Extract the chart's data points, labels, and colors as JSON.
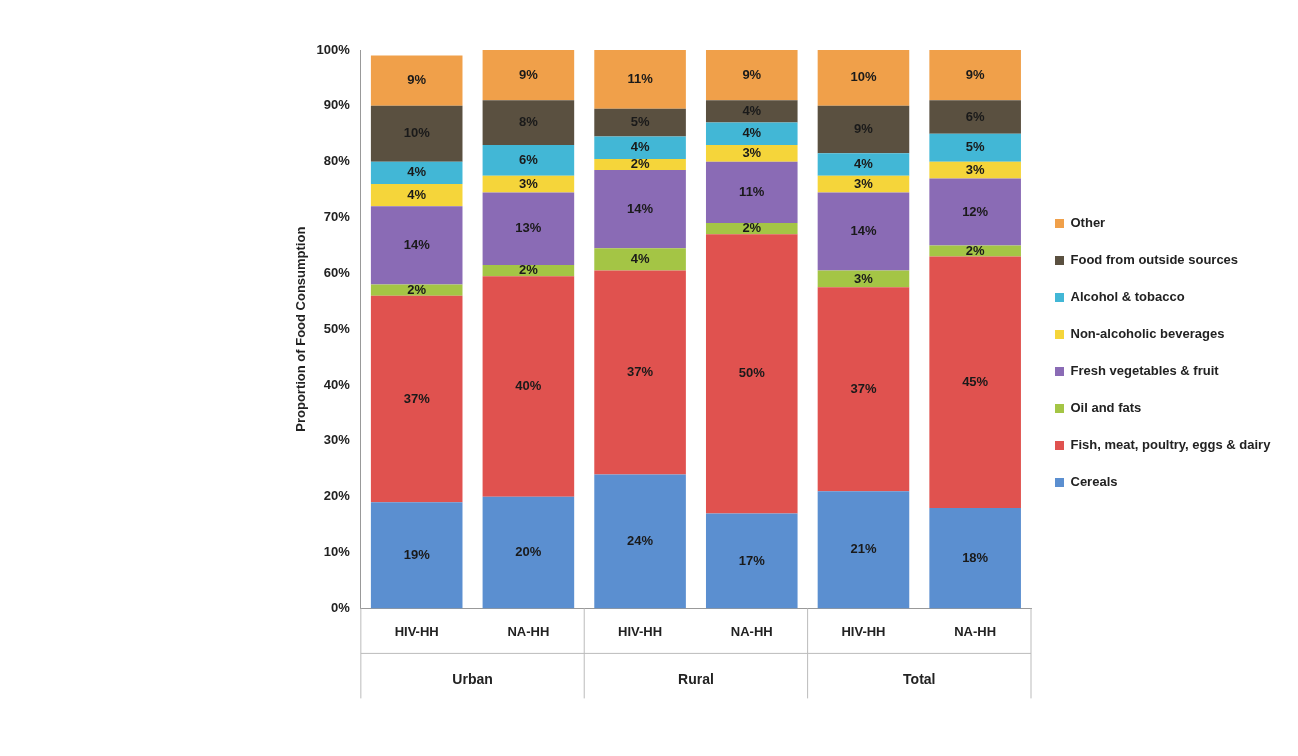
{
  "chart_data": {
    "type": "bar",
    "stacked": true,
    "ylabel": "Proportion of Food Consumption",
    "categories": [
      "HIV-HH",
      "NA-HH",
      "HIV-HH",
      "NA-HH",
      "HIV-HH",
      "NA-HH"
    ],
    "annotations": [
      "Urban",
      "Rural",
      "Total"
    ],
    "ylim": [
      0,
      100
    ],
    "yticks": [
      {
        "value": 0,
        "label": "0%"
      },
      {
        "value": 10,
        "label": "10%"
      },
      {
        "value": 20,
        "label": "20%"
      },
      {
        "value": 30,
        "label": "30%"
      },
      {
        "value": 40,
        "label": "40%"
      },
      {
        "value": 50,
        "label": "50%"
      },
      {
        "value": 60,
        "label": "60%"
      },
      {
        "value": 70,
        "label": "70%"
      },
      {
        "value": 80,
        "label": "80%"
      },
      {
        "value": 90,
        "label": "90%"
      },
      {
        "value": 100,
        "label": "100%"
      }
    ],
    "series": [
      {
        "name": "Cereals",
        "color": "#5b8fd0",
        "values": [
          19,
          20,
          24,
          17,
          21,
          18
        ],
        "value_labels": [
          "19%",
          "20%",
          "24%",
          "17%",
          "21%",
          "18%"
        ]
      },
      {
        "name": "Fish, meat, poultry, eggs & dairy",
        "color": "#e0524f",
        "values": [
          37,
          39.5,
          36.5,
          50,
          36.5,
          45
        ],
        "value_labels": [
          "37%",
          "40%",
          "37%",
          "50%",
          "37%",
          "45%"
        ]
      },
      {
        "name": "Oil and fats",
        "color": "#a4c545",
        "values": [
          2,
          2,
          4,
          2,
          3,
          2
        ],
        "value_labels": [
          "2%",
          "2%",
          "4%",
          "2%",
          "3%",
          "2%"
        ]
      },
      {
        "name": "Fresh vegetables & fruit",
        "color": "#8a6bb5",
        "values": [
          14,
          13,
          14,
          11,
          14,
          12
        ],
        "value_labels": [
          "14%",
          "13%",
          "14%",
          "11%",
          "14%",
          "12%"
        ]
      },
      {
        "name": "Non-alcoholic beverages",
        "color": "#f5d53a",
        "values": [
          4,
          3,
          2,
          3,
          3,
          3
        ],
        "value_labels": [
          "4%",
          "3%",
          "2%",
          "3%",
          "3%",
          "3%"
        ]
      },
      {
        "name": "Alcohol & tobacco",
        "color": "#42b7d6",
        "values": [
          4,
          5.5,
          4,
          4,
          4,
          5
        ],
        "value_labels": [
          "4%",
          "6%",
          "4%",
          "4%",
          "4%",
          "5%"
        ]
      },
      {
        "name": "Food from outside sources",
        "color": "#5a5040",
        "values": [
          10,
          8,
          5,
          4,
          8.5,
          6
        ],
        "value_labels": [
          "10%",
          "8%",
          "5%",
          "4%",
          "9%",
          "6%"
        ]
      },
      {
        "name": "Other",
        "color": "#f0a04a",
        "values": [
          9,
          9,
          10.5,
          9,
          10,
          9
        ],
        "value_labels": [
          "9%",
          "9%",
          "11%",
          "9%",
          "10%",
          "9%"
        ]
      }
    ],
    "legend": "right",
    "grid": false
  }
}
